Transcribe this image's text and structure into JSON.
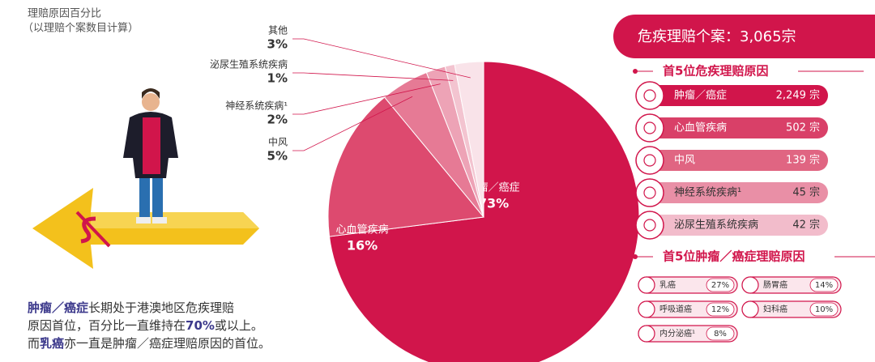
{
  "chart_data": {
    "type": "pie",
    "title": "理赔原因百分比",
    "subtitle": "（以理赔个案数目计算）",
    "categories": [
      "肿瘤／癌症",
      "心血管疾病",
      "中风",
      "神经系统疾病¹",
      "泌尿生殖系统疾病",
      "其他"
    ],
    "values": [
      73,
      16,
      5,
      2,
      1,
      3
    ],
    "value_labels": [
      "73%",
      "16%",
      "5%",
      "2%",
      "1%",
      "3%"
    ],
    "colors": [
      "#d1154b",
      "#dd4a6f",
      "#e67a95",
      "#eda3b6",
      "#f3c4d0",
      "#f9e3e9"
    ]
  },
  "claims": {
    "title": "危疾理赔个案：3,065宗",
    "top5_title": "首5位危疾理赔原因",
    "top5": [
      {
        "name": "肿瘤／癌症",
        "count": "2,249 宗"
      },
      {
        "name": "心血管疾病",
        "count": "502 宗"
      },
      {
        "name": "中风",
        "count": "139 宗"
      },
      {
        "name": "神经系统疾病¹",
        "count": "45 宗"
      },
      {
        "name": "泌尿生殖系统疾病",
        "count": "42 宗"
      }
    ],
    "cancer_title": "首5位肿瘤／癌症理赔原因",
    "cancer": [
      {
        "name": "乳癌",
        "share": "27%"
      },
      {
        "name": "肠胃癌",
        "share": "14%"
      },
      {
        "name": "呼吸道癌",
        "share": "12%"
      },
      {
        "name": "妇科癌",
        "share": "10%"
      },
      {
        "name": "内分泌癌¹",
        "share": "8%"
      }
    ]
  },
  "note": {
    "lines": [
      [
        "肿瘤／癌症",
        "长期处于港澳地区危疾理赔"
      ],
      [
        "原因首位，百分比一直维持在",
        "70%",
        "或以上。"
      ],
      [
        "而",
        "乳癌",
        "亦一直是肿瘤／癌症理赔原因的首位。"
      ]
    ]
  }
}
